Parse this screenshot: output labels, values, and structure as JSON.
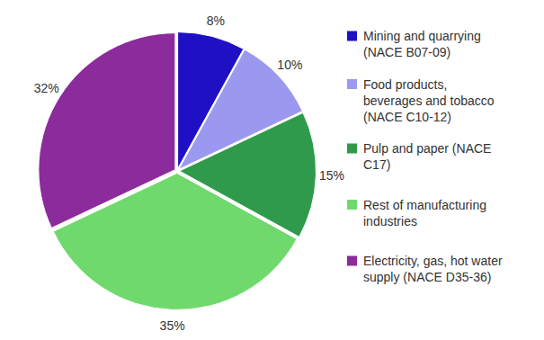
{
  "chart_data": {
    "type": "pie",
    "categories": [
      "Mining and quarrying (NACE B07-09)",
      "Food products, beverages and tobacco (NACE C10-12)",
      "Pulp and paper (NACE C17)",
      "Rest of manufacturing industries",
      "Electricity, gas, hot water supply (NACE D35-36)"
    ],
    "values": [
      8,
      10,
      15,
      35,
      32
    ],
    "value_labels": [
      "8%",
      "10%",
      "15%",
      "35%",
      "32%"
    ],
    "colors": [
      "#1f10c6",
      "#9b99ef",
      "#2f9a4b",
      "#70d96d",
      "#8c2b9c"
    ],
    "data_labels": true,
    "legend": "right"
  }
}
